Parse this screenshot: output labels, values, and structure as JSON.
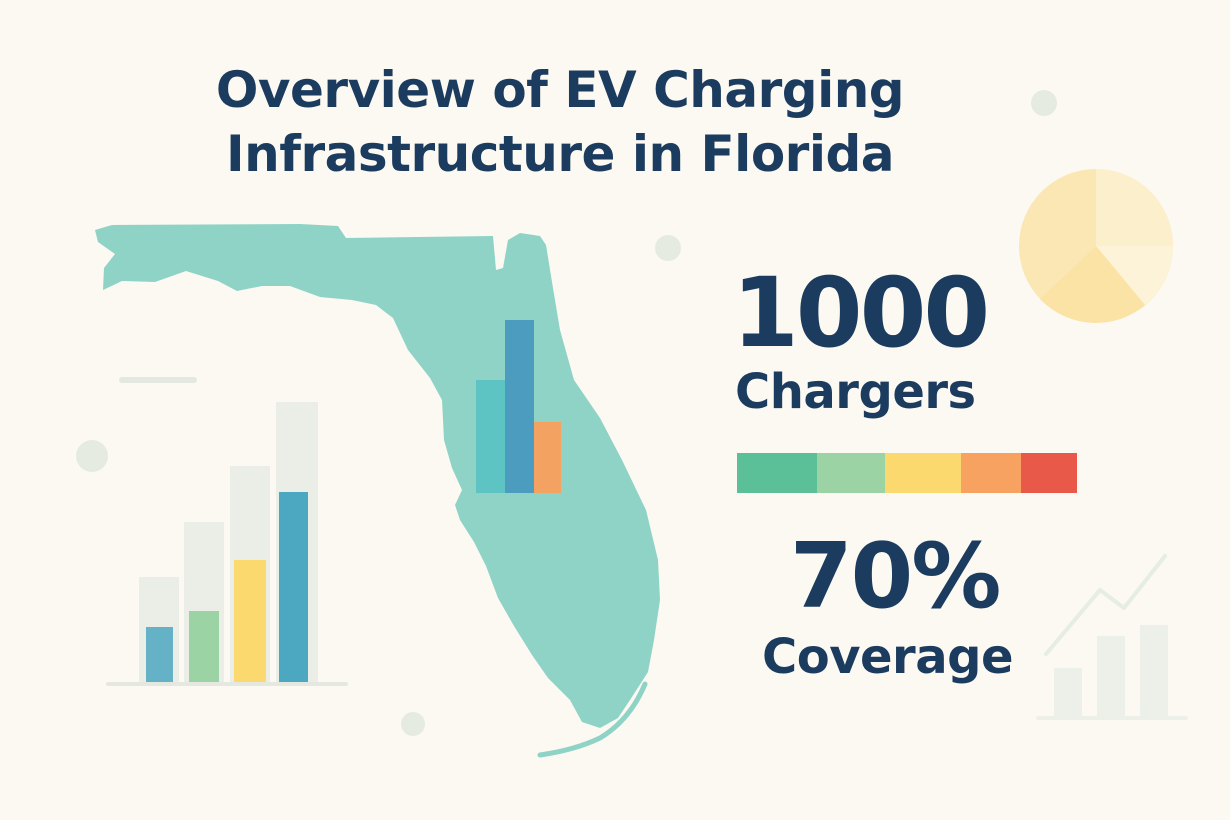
{
  "title": {
    "line1": "Overview of EV Charging",
    "line2": "Infrastructure in Florida"
  },
  "stats": {
    "chargers": {
      "value": "1000",
      "label": "Chargers"
    },
    "coverage": {
      "value": "70%",
      "label": "Coverage"
    }
  },
  "color_scale": [
    "#5bbf98",
    "#9bd3a5",
    "#fbd96f",
    "#f8a261",
    "#e8594a"
  ],
  "colors": {
    "title_text": "#1b3b5f",
    "background": "#fbf9f1",
    "map_fill": "#8fd3c6",
    "accent_teal": "#5ec3c3",
    "accent_blue": "#4b9cbf",
    "accent_orange": "#f4a261",
    "accent_yellow": "#fbd96f",
    "accent_green": "#9bd3a5"
  },
  "icons": {
    "map": "florida-map-icon",
    "left_chart": "bar-chart-icon",
    "pie": "pie-chart-icon",
    "trend": "trend-chart-icon"
  }
}
